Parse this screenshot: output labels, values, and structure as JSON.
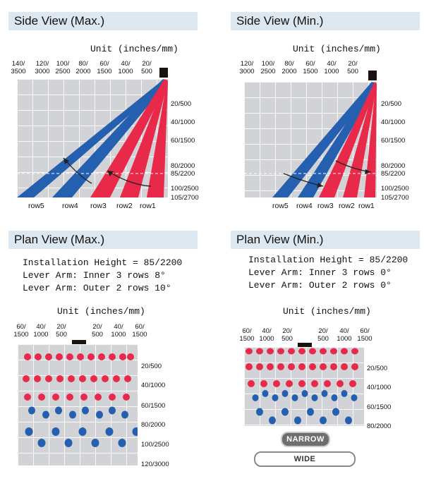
{
  "side_max": {
    "title": "Side View (Max.)",
    "unit": "Unit (inches/mm)",
    "x_ticks": [
      [
        "140/",
        "3500"
      ],
      [
        "120/",
        "3000"
      ],
      [
        "100/",
        "2500"
      ],
      [
        "80/",
        "2000"
      ],
      [
        "60/",
        "1500"
      ],
      [
        "40/",
        "1000"
      ],
      [
        "20/",
        "500"
      ]
    ],
    "y_ticks": [
      "20/500",
      "40/1000",
      "60/1500",
      "80/2000",
      "85/2200",
      "100/2500",
      "105/2700"
    ],
    "rows": [
      "row5",
      "row4",
      "row3",
      "row2",
      "row1"
    ]
  },
  "side_min": {
    "title": "Side View (Min.)",
    "unit": "Unit (inches/mm)",
    "x_ticks": [
      [
        "120/",
        "3000"
      ],
      [
        "100/",
        "2500"
      ],
      [
        "80/",
        "2000"
      ],
      [
        "60/",
        "1500"
      ],
      [
        "40/",
        "1000"
      ],
      [
        "20/",
        "500"
      ]
    ],
    "y_ticks": [
      "20/500",
      "40/1000",
      "60/1500",
      "80/2000",
      "85/2200",
      "100/2500",
      "105/2700"
    ],
    "rows": [
      "row5",
      "row4",
      "row3",
      "row2",
      "row1"
    ]
  },
  "plan_max": {
    "title": "Plan View (Max.)",
    "installation_height": "Installation Height = 85/2200",
    "inner": "Lever Arm: Inner 3 rows 8°",
    "outer": "Lever Arm: Outer 2 rows 10°",
    "unit": "Unit (inches/mm)",
    "x_ticks": [
      [
        "60/",
        "1500"
      ],
      [
        "40/",
        "1000"
      ],
      [
        "20/",
        "500"
      ],
      [
        "20/",
        "500"
      ],
      [
        "40/",
        "1000"
      ],
      [
        "60/",
        "1500"
      ]
    ],
    "y_ticks": [
      "20/500",
      "40/1000",
      "60/1500",
      "80/2000",
      "100/2500",
      "120/3000"
    ]
  },
  "plan_min": {
    "title": "Plan View (Min.)",
    "installation_height": "Installation Height = 85/2200",
    "inner": "Lever Arm: Inner 3 rows 0°",
    "outer": "Lever Arm: Outer 2 rows 0°",
    "unit": "Unit (inches/mm)",
    "x_ticks": [
      [
        "60/",
        "1500"
      ],
      [
        "40/",
        "1000"
      ],
      [
        "20/",
        "500"
      ],
      [
        "20/",
        "500"
      ],
      [
        "40/",
        "1000"
      ],
      [
        "60/",
        "1500"
      ]
    ],
    "y_ticks": [
      "20/500",
      "40/1000",
      "60/1500",
      "80/2000"
    ],
    "narrow_label": "NARROW",
    "wide_label": "WIDE"
  },
  "colors": {
    "red": "#e8294a",
    "blue": "#2560b0",
    "header_bg": "#dde7ef",
    "grid_bg": "#d2d3d6"
  }
}
